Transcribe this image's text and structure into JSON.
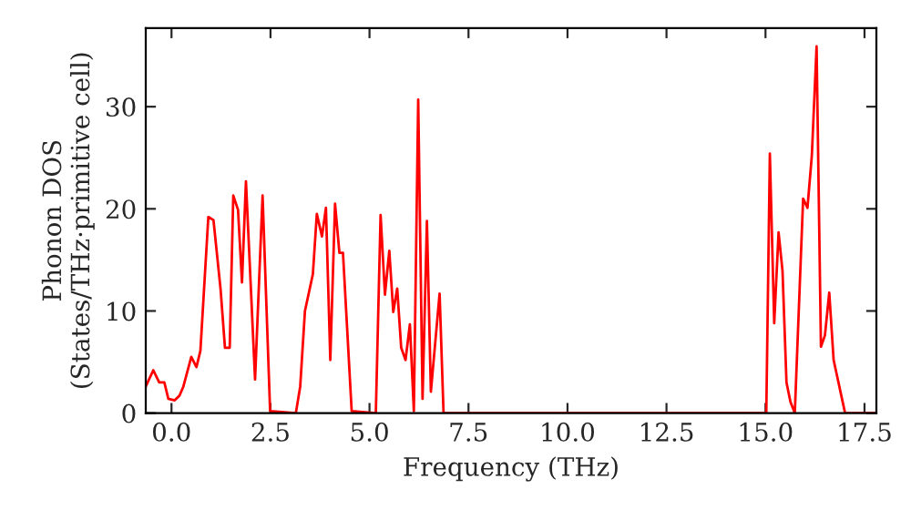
{
  "chart_data": {
    "type": "line",
    "xlabel": "Frequency (THz)",
    "ylabel": "Phonon DOS\n(States/THz·primitive cell)",
    "x": [
      -0.65,
      -0.46,
      -0.31,
      -0.18,
      -0.08,
      0.08,
      0.2,
      0.3,
      0.5,
      0.63,
      0.73,
      0.93,
      1.06,
      1.24,
      1.35,
      1.47,
      1.56,
      1.68,
      1.78,
      1.88,
      2.11,
      2.3,
      2.49,
      3.14,
      3.25,
      3.37,
      3.57,
      3.67,
      3.8,
      3.9,
      4.01,
      4.13,
      4.24,
      4.33,
      4.55,
      5.16,
      5.28,
      5.39,
      5.5,
      5.6,
      5.7,
      5.8,
      5.91,
      6.02,
      6.12,
      6.23,
      6.34,
      6.45,
      6.55,
      6.77,
      6.87,
      15.02,
      15.11,
      15.22,
      15.33,
      15.43,
      15.53,
      15.63,
      15.74,
      15.95,
      16.06,
      16.17,
      16.29,
      16.4,
      16.5,
      16.61,
      16.72,
      17.01,
      17.8
    ],
    "series": [
      {
        "color": "#ff0000",
        "values": [
          2.6,
          4.2,
          3.0,
          3.0,
          1.4,
          1.25,
          1.7,
          2.6,
          5.5,
          4.5,
          6.1,
          19.2,
          18.9,
          12.1,
          6.4,
          6.4,
          21.3,
          19.9,
          12.8,
          22.7,
          3.3,
          21.3,
          0.2,
          0,
          2.6,
          10,
          13.6,
          19.5,
          17.3,
          20.1,
          5.2,
          20.5,
          15.7,
          15.7,
          0.2,
          0,
          19.4,
          11.6,
          15.9,
          9.9,
          12.2,
          6.4,
          5.2,
          8.7,
          0.2,
          30.7,
          1.4,
          18.8,
          2.1,
          11.7,
          0,
          0,
          25.4,
          8.8,
          17.7,
          13.9,
          3.0,
          1.1,
          0,
          21.0,
          20.1,
          25.2,
          35.9,
          6.5,
          7.6,
          11.8,
          5.2,
          0,
          0
        ]
      }
    ],
    "xlim": [
      -0.65,
      17.8
    ],
    "ylim": [
      0,
      37.7
    ],
    "xticks": [
      {
        "value": 0,
        "label": "0.0"
      },
      {
        "value": 2.5,
        "label": "2.5"
      },
      {
        "value": 5,
        "label": "5.0"
      },
      {
        "value": 7.5,
        "label": "7.5"
      },
      {
        "value": 10,
        "label": "10.0"
      },
      {
        "value": 12.5,
        "label": "12.5"
      },
      {
        "value": 15,
        "label": "15.0"
      },
      {
        "value": 17.5,
        "label": "17.5"
      }
    ],
    "yticks": [
      0,
      10,
      20,
      30
    ],
    "grid": false,
    "legend": false
  }
}
